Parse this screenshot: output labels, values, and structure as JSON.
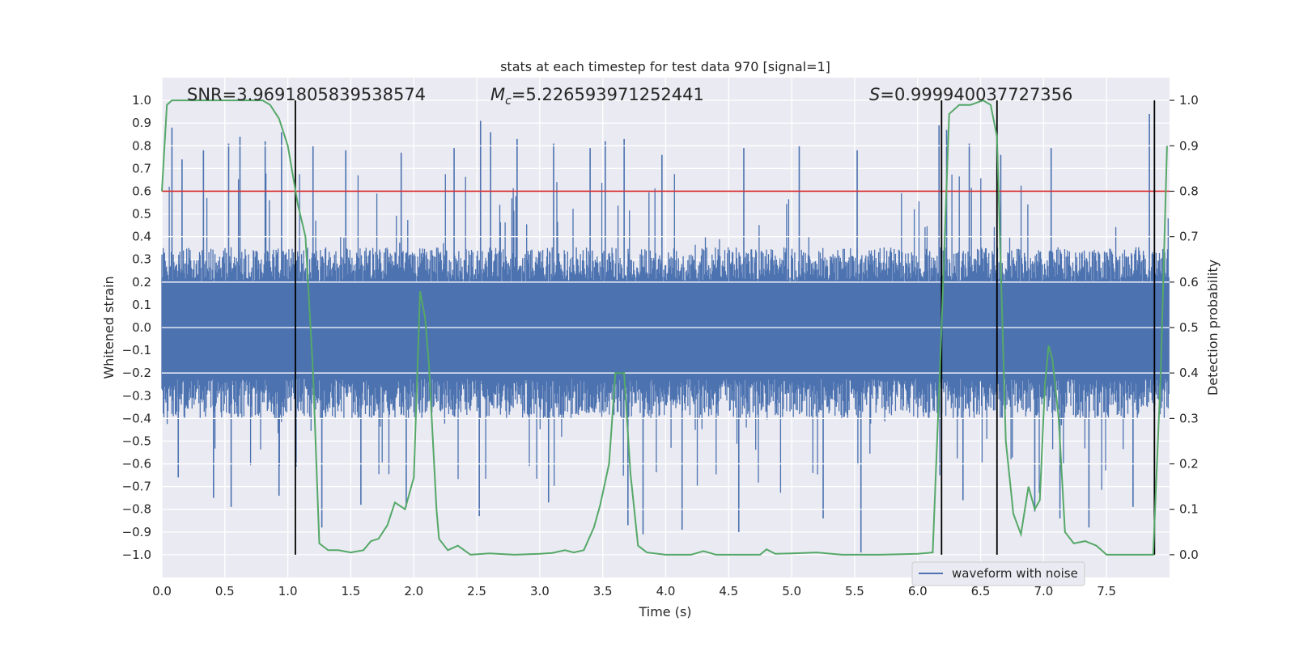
{
  "chart_data": {
    "type": "line",
    "title": "stats at each timestep for test data 970 [signal=1]",
    "xlabel": "Time (s)",
    "ylabel": "Whitened strain",
    "y2label": "Detection probability",
    "xlim": [
      0.0,
      8.0
    ],
    "ylim": [
      -1.1,
      1.1
    ],
    "y2lim": [
      -0.05,
      1.05
    ],
    "x_ticks": [
      0.0,
      0.5,
      1.0,
      1.5,
      2.0,
      2.5,
      3.0,
      3.5,
      4.0,
      4.5,
      5.0,
      5.5,
      6.0,
      6.5,
      7.0,
      7.5
    ],
    "x_tick_labels": [
      "0.0",
      "0.5",
      "1.0",
      "1.5",
      "2.0",
      "2.5",
      "3.0",
      "3.5",
      "4.0",
      "4.5",
      "5.0",
      "5.5",
      "6.0",
      "6.5",
      "7.0",
      "7.5"
    ],
    "y_ticks": [
      1.0,
      0.9,
      0.8,
      0.7,
      0.6,
      0.5,
      0.4,
      0.3,
      0.2,
      0.1,
      0.0,
      -0.1,
      -0.2,
      -0.3,
      -0.4,
      -0.5,
      -0.6,
      -0.7,
      -0.8,
      -0.9,
      -1.0
    ],
    "y_tick_labels": [
      "1.0",
      "0.9",
      "0.8",
      "0.7",
      "0.6",
      "0.5",
      "0.4",
      "0.3",
      "0.2",
      "0.1",
      "0.0",
      "−0.1",
      "−0.2",
      "−0.3",
      "−0.4",
      "−0.5",
      "−0.6",
      "−0.7",
      "−0.8",
      "−0.9",
      "−1.0"
    ],
    "y2_ticks": [
      1.0,
      0.9,
      0.8,
      0.7,
      0.6,
      0.5,
      0.4,
      0.3,
      0.2,
      0.1,
      0.0
    ],
    "y2_tick_labels": [
      "1.0",
      "0.9",
      "0.8",
      "0.7",
      "0.6",
      "0.5",
      "0.4",
      "0.3",
      "0.2",
      "0.1",
      "0.0"
    ],
    "annotations": {
      "snr": "SNR=3.9691805839538574",
      "mc_symbol": "M",
      "mc_sub": "c",
      "mc_value": "=5.226593971252441",
      "s_symbol": "S",
      "s_value": "=0.999940037727356"
    },
    "legend": {
      "label": "waveform with noise",
      "location": "lower right"
    },
    "threshold": {
      "y2": 0.8,
      "color": "#d62728"
    },
    "vlines": [
      1.06,
      6.19,
      6.63,
      7.88
    ],
    "vline_range_y2": [
      0.0,
      1.0
    ],
    "strain_series": {
      "name": "waveform with noise",
      "color": "#4c72b0",
      "envelope": {
        "upper_typical": 0.36,
        "lower_typical": -0.41
      },
      "spikes": [
        [
          0.08,
          0.88
        ],
        [
          0.16,
          0.74
        ],
        [
          0.33,
          0.78
        ],
        [
          0.53,
          0.81
        ],
        [
          0.62,
          0.84
        ],
        [
          0.82,
          0.82
        ],
        [
          0.95,
          0.86
        ],
        [
          1.2,
          0.8
        ],
        [
          1.46,
          0.78
        ],
        [
          1.9,
          0.77
        ],
        [
          2.32,
          0.79
        ],
        [
          2.53,
          0.91
        ],
        [
          2.61,
          0.86
        ],
        [
          2.82,
          0.83
        ],
        [
          3.11,
          0.81
        ],
        [
          3.4,
          0.79
        ],
        [
          3.52,
          0.82
        ],
        [
          3.67,
          0.83
        ],
        [
          3.97,
          0.76
        ],
        [
          4.62,
          0.79
        ],
        [
          5.06,
          0.8
        ],
        [
          5.52,
          0.78
        ],
        [
          6.17,
          0.89
        ],
        [
          6.23,
          0.87
        ],
        [
          6.41,
          0.81
        ],
        [
          6.66,
          0.76
        ],
        [
          7.06,
          0.79
        ],
        [
          7.84,
          0.94
        ],
        [
          0.13,
          -0.66
        ],
        [
          0.41,
          -0.75
        ],
        [
          0.55,
          -0.79
        ],
        [
          0.93,
          -0.74
        ],
        [
          1.27,
          -0.88
        ],
        [
          1.58,
          -0.78
        ],
        [
          1.94,
          -0.79
        ],
        [
          2.52,
          -0.83
        ],
        [
          3.07,
          -0.77
        ],
        [
          3.7,
          -0.87
        ],
        [
          3.82,
          -0.91
        ],
        [
          4.13,
          -0.89
        ],
        [
          4.58,
          -0.9
        ],
        [
          5.25,
          -0.84
        ],
        [
          5.55,
          -0.99
        ],
        [
          6.36,
          -0.76
        ],
        [
          6.93,
          -0.81
        ],
        [
          7.13,
          -0.84
        ],
        [
          7.36,
          -0.88
        ],
        [
          7.71,
          -0.79
        ]
      ]
    },
    "probability_series": {
      "name": "detection probability",
      "color": "#55a868",
      "x": [
        0.0,
        0.04,
        0.08,
        0.12,
        0.2,
        0.3,
        0.4,
        0.5,
        0.6,
        0.7,
        0.8,
        0.86,
        0.93,
        1.0,
        1.08,
        1.14,
        1.2,
        1.25,
        1.32,
        1.4,
        1.5,
        1.6,
        1.66,
        1.72,
        1.79,
        1.85,
        1.93,
        2.0,
        2.05,
        2.09,
        2.12,
        2.18,
        2.2,
        2.27,
        2.35,
        2.45,
        2.6,
        2.8,
        3.0,
        3.1,
        3.2,
        3.27,
        3.35,
        3.43,
        3.48,
        3.55,
        3.6,
        3.63,
        3.67,
        3.72,
        3.78,
        3.85,
        4.0,
        4.2,
        4.3,
        4.4,
        4.6,
        4.75,
        4.8,
        4.87,
        5.0,
        5.2,
        5.4,
        5.7,
        6.0,
        6.12,
        6.19,
        6.25,
        6.33,
        6.42,
        6.52,
        6.58,
        6.63,
        6.7,
        6.76,
        6.82,
        6.88,
        6.93,
        6.97,
        7.01,
        7.04,
        7.07,
        7.12,
        7.17,
        7.24,
        7.33,
        7.42,
        7.5,
        7.62,
        7.8,
        7.87,
        7.93,
        7.98
      ],
      "y": [
        0.8,
        0.99,
        1.0,
        1.0,
        1.0,
        1.0,
        1.0,
        1.0,
        1.0,
        1.0,
        1.0,
        0.99,
        0.96,
        0.9,
        0.77,
        0.7,
        0.4,
        0.025,
        0.01,
        0.01,
        0.005,
        0.01,
        0.03,
        0.035,
        0.065,
        0.115,
        0.1,
        0.17,
        0.58,
        0.52,
        0.42,
        0.1,
        0.035,
        0.01,
        0.02,
        0.0,
        0.003,
        0.0,
        0.002,
        0.004,
        0.01,
        0.005,
        0.01,
        0.06,
        0.11,
        0.2,
        0.4,
        0.4,
        0.4,
        0.18,
        0.02,
        0.005,
        0.0,
        0.0,
        0.008,
        0.0,
        0.0,
        0.0,
        0.012,
        0.002,
        0.003,
        0.005,
        0.0,
        0.0,
        0.002,
        0.005,
        0.5,
        0.97,
        0.99,
        0.99,
        1.0,
        0.99,
        0.92,
        0.25,
        0.09,
        0.045,
        0.15,
        0.1,
        0.12,
        0.37,
        0.46,
        0.43,
        0.3,
        0.05,
        0.025,
        0.03,
        0.02,
        0.0,
        0.0,
        0.0,
        0.0,
        0.4,
        0.9
      ]
    }
  }
}
